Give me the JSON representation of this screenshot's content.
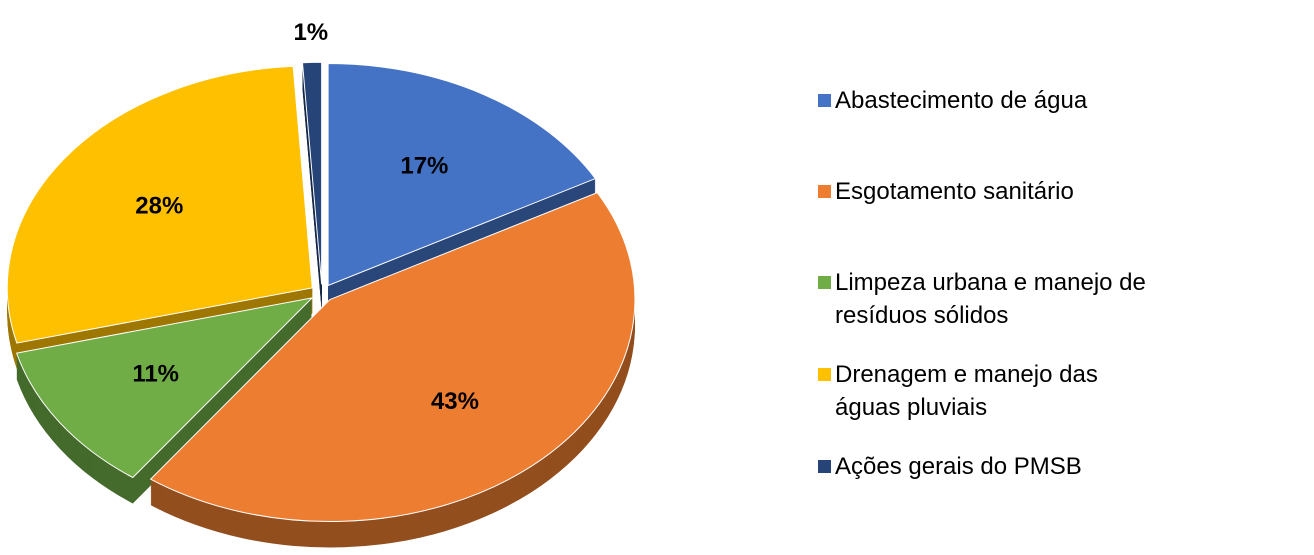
{
  "chart_data": {
    "type": "pie",
    "categories": [
      "Abastecimento de água",
      "Esgotamento sanitário",
      "Limpeza urbana e manejo de resíduos sólidos",
      "Drenagem e manejo das águas pluviais",
      "Ações gerais do PMSB"
    ],
    "values": [
      17,
      43,
      11,
      28,
      1
    ],
    "value_labels": [
      "17%",
      "43%",
      "11%",
      "28%",
      "1%"
    ],
    "colors": [
      "#4472c4",
      "#ed7d31",
      "#70ad47",
      "#ffc000",
      "#264478"
    ],
    "legend": "right"
  }
}
